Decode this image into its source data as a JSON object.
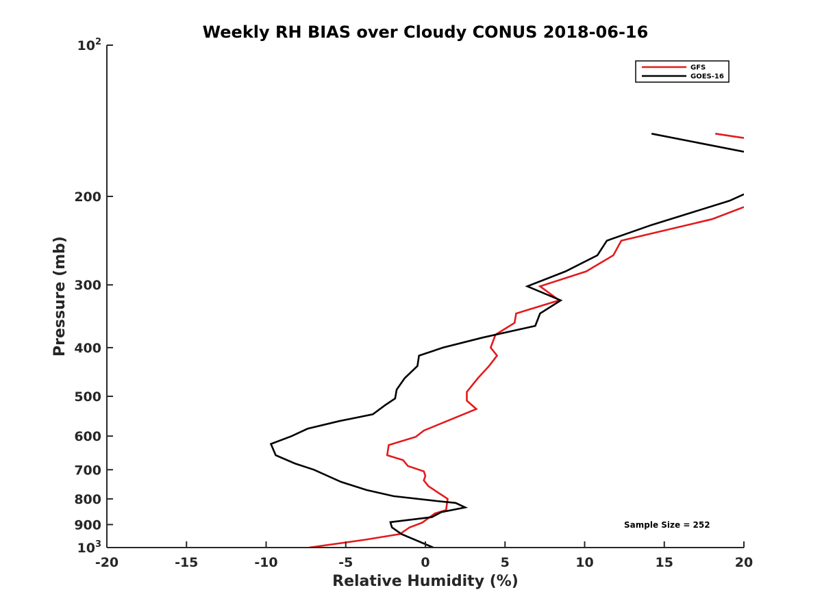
{
  "chart_data": {
    "type": "line",
    "title": "Weekly RH BIAS over Cloudy CONUS 2018-06-16",
    "xlabel": "Relative Humidity (%)",
    "ylabel": "Pressure (mb)",
    "xlim": [
      -20,
      20
    ],
    "ylim": [
      100,
      1000
    ],
    "y_scale": "log",
    "y_reversed": true,
    "grid": false,
    "legend_position": "top-right",
    "x_ticks": [
      -20,
      -15,
      -10,
      -5,
      0,
      5,
      10,
      15,
      20
    ],
    "x_tick_labels": [
      "-20",
      "-15",
      "-10",
      "-5",
      "0",
      "5",
      "10",
      "15",
      "20"
    ],
    "y_ticks": [
      {
        "value": 100,
        "base": "10",
        "exp": "2"
      },
      {
        "value": 200,
        "label": "200"
      },
      {
        "value": 300,
        "label": "300"
      },
      {
        "value": 400,
        "label": "400"
      },
      {
        "value": 500,
        "label": "500"
      },
      {
        "value": 600,
        "label": "600"
      },
      {
        "value": 700,
        "label": "700"
      },
      {
        "value": 800,
        "label": "800"
      },
      {
        "value": 900,
        "label": "900"
      },
      {
        "value": 1000,
        "base": "10",
        "exp": "3"
      }
    ],
    "annotation": "Sample Size = 252",
    "series": [
      {
        "name": "GFS",
        "color": "#e31a1c",
        "segments": [
          [
            [
              18.2,
              150
            ],
            [
              20,
              153
            ]
          ],
          [
            [
              20,
              210
            ],
            [
              18.0,
              222
            ],
            [
              12.3,
              245
            ],
            [
              11.8,
              262
            ],
            [
              10.1,
              282
            ],
            [
              7.2,
              302
            ],
            [
              8.4,
              322
            ],
            [
              5.7,
              342
            ],
            [
              5.6,
              357
            ],
            [
              4.4,
              377
            ],
            [
              4.1,
              400
            ],
            [
              4.5,
              415
            ],
            [
              4.0,
              435
            ],
            [
              3.3,
              460
            ],
            [
              2.6,
              490
            ],
            [
              2.6,
              510
            ],
            [
              3.2,
              530
            ],
            [
              -0.1,
              585
            ],
            [
              -0.6,
              602
            ],
            [
              -2.3,
              625
            ],
            [
              -2.4,
              655
            ],
            [
              -1.4,
              670
            ],
            [
              -1.1,
              688
            ],
            [
              -0.1,
              705
            ],
            [
              0,
              720
            ],
            [
              -0.1,
              735
            ],
            [
              0.2,
              755
            ],
            [
              1.4,
              800
            ],
            [
              1.3,
              842
            ],
            [
              0.6,
              855
            ],
            [
              -0.2,
              892
            ],
            [
              -1.0,
              912
            ],
            [
              -1.6,
              940
            ],
            [
              -3.8,
              965
            ],
            [
              -7.3,
              1000
            ]
          ]
        ]
      },
      {
        "name": "GOES-16",
        "color": "#000000",
        "segments": [
          [
            [
              14.2,
              150
            ],
            [
              20,
              163
            ]
          ],
          [
            [
              20,
              198
            ],
            [
              19.1,
              204
            ],
            [
              14.2,
              228
            ],
            [
              11.4,
              245
            ],
            [
              10.8,
              262
            ],
            [
              8.8,
              282
            ],
            [
              6.4,
              302
            ],
            [
              8.5,
              322
            ],
            [
              7.2,
              342
            ],
            [
              6.9,
              362
            ],
            [
              3.6,
              382
            ],
            [
              1.1,
              400
            ],
            [
              -0.4,
              415
            ],
            [
              -0.5,
              435
            ],
            [
              -1.3,
              460
            ],
            [
              -1.8,
              485
            ],
            [
              -1.9,
              505
            ],
            [
              -2.5,
              520
            ],
            [
              -3.3,
              543
            ],
            [
              -5.4,
              560
            ],
            [
              -7.4,
              580
            ],
            [
              -8.4,
              600
            ],
            [
              -9.7,
              622
            ],
            [
              -9.4,
              655
            ],
            [
              -8.2,
              680
            ],
            [
              -7.0,
              700
            ],
            [
              -5.3,
              740
            ],
            [
              -3.7,
              768
            ],
            [
              -2.0,
              790
            ],
            [
              0.7,
              808
            ],
            [
              1.9,
              815
            ],
            [
              2.5,
              832
            ],
            [
              1.0,
              850
            ],
            [
              0.4,
              870
            ],
            [
              -2.2,
              890
            ],
            [
              -2.1,
              912
            ],
            [
              -1.5,
              940
            ],
            [
              0.5,
              1000
            ]
          ]
        ]
      }
    ]
  }
}
